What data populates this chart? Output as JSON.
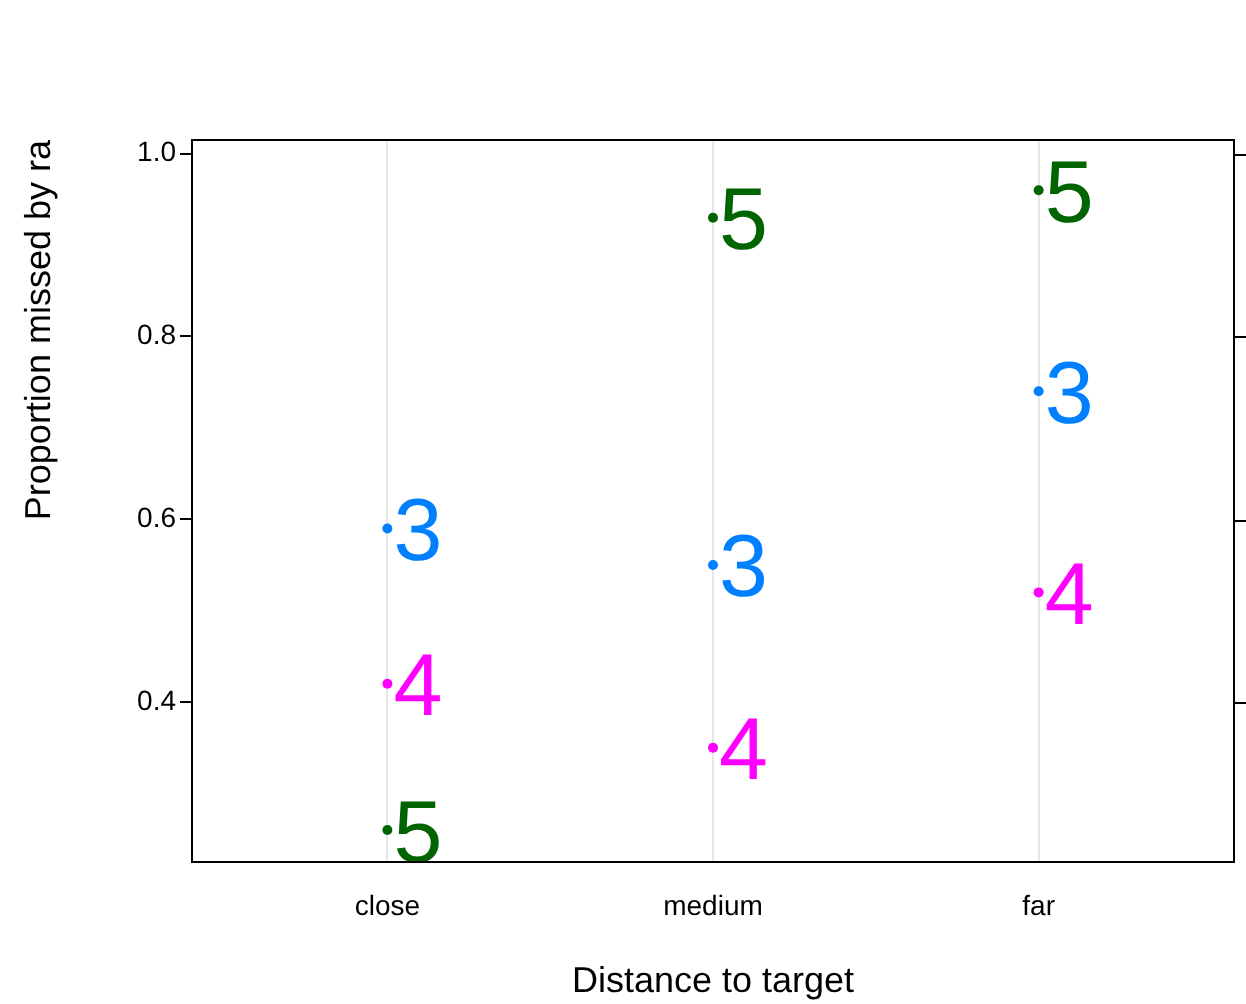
{
  "chart_data": {
    "type": "scatter",
    "xlabel": "Distance to target",
    "ylabel": "Proportion missed by ra",
    "categories": [
      "close",
      "medium",
      "far"
    ],
    "series": [
      {
        "name": "3",
        "color": "#0080ff",
        "values": [
          0.59,
          0.55,
          0.74
        ]
      },
      {
        "name": "4",
        "color": "#ff00ff",
        "values": [
          0.42,
          0.35,
          0.52
        ]
      },
      {
        "name": "5",
        "color": "#006400",
        "values": [
          0.26,
          0.93,
          0.96
        ]
      }
    ],
    "ylim": [
      0.225,
      1.015
    ],
    "yticks": [
      0.4,
      0.6,
      0.8,
      {
        "value": 1,
        "label": "1.0"
      }
    ],
    "grid": "x",
    "legend": false,
    "marker": "circle"
  }
}
